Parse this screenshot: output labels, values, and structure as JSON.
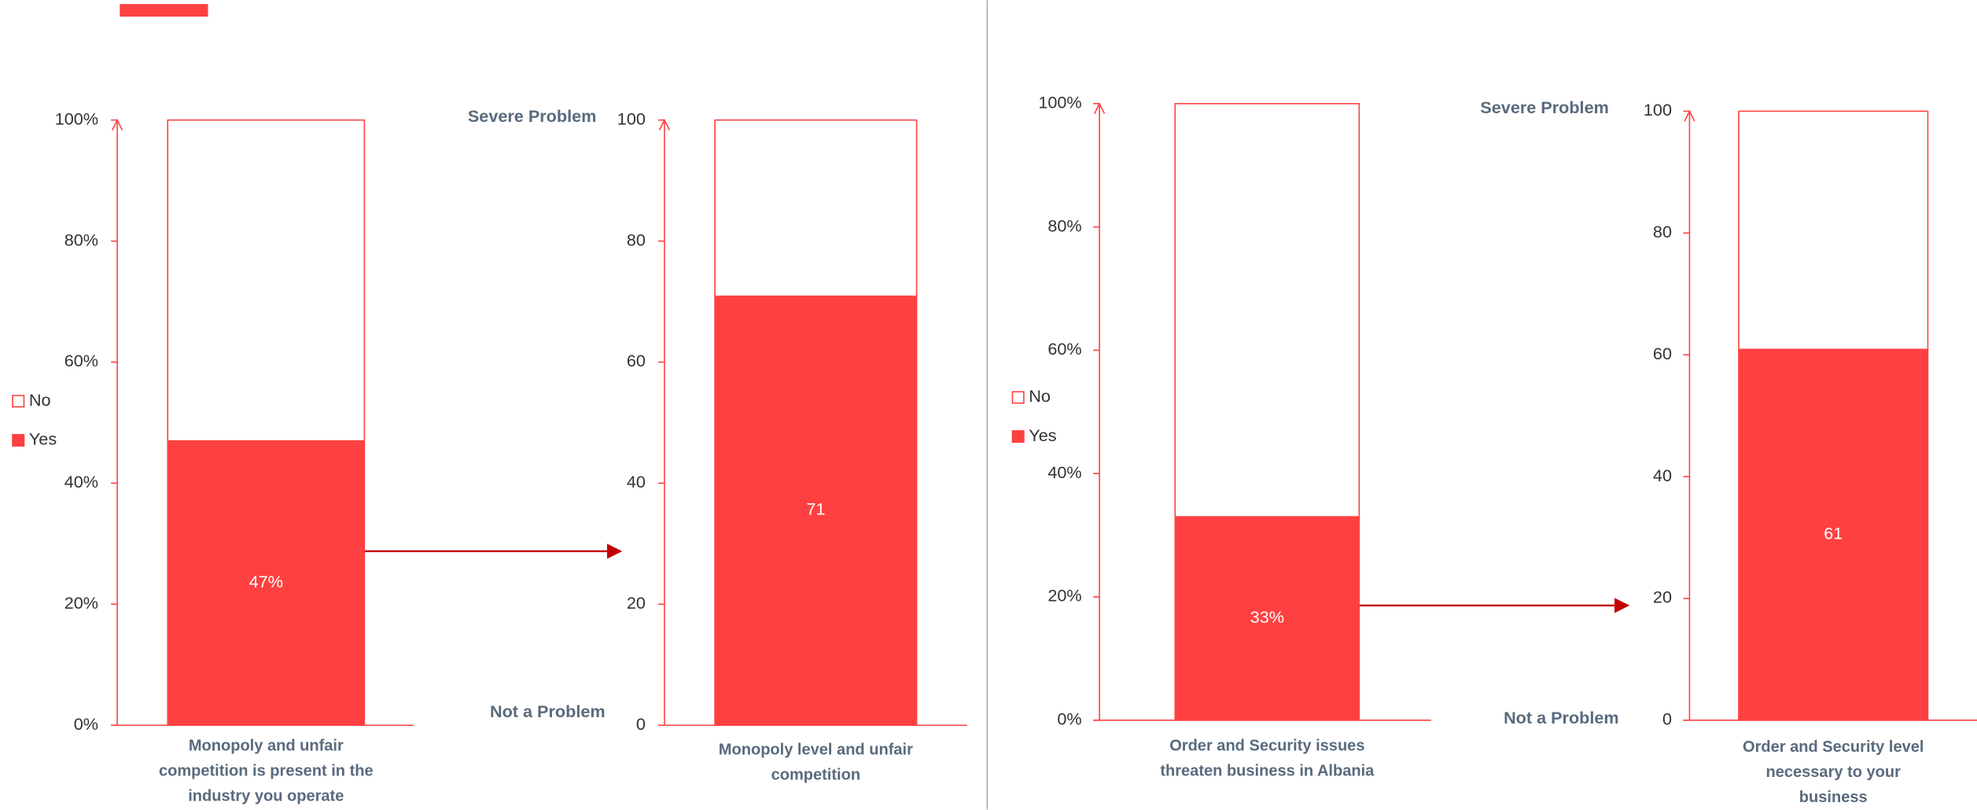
{
  "chart_data": [
    {
      "type": "stacked_bar",
      "categories": [
        "Monopoly and unfair competition is present in the industry you operate"
      ],
      "series": [
        {
          "name": "Yes",
          "color": "#ff4040",
          "values": [
            47
          ],
          "value_labels": [
            "47%"
          ]
        },
        {
          "name": "No",
          "color": "#ffffff",
          "values": [
            53
          ]
        }
      ],
      "ylim": [
        0,
        100
      ],
      "yticks": [
        {
          "value": 0,
          "label": "0%"
        },
        {
          "value": 20,
          "label": "20%"
        },
        {
          "value": 40,
          "label": "40%"
        },
        {
          "value": 60,
          "label": "60%"
        },
        {
          "value": 80,
          "label": "80%"
        },
        {
          "value": 100,
          "label": "100%"
        }
      ],
      "legend": "left"
    },
    {
      "type": "bar",
      "categories": [
        "Monopoly level and unfair competition"
      ],
      "values": [
        71
      ],
      "color": "#ff4040",
      "ylim": [
        0,
        100
      ],
      "yticks": [
        0,
        20,
        40,
        60,
        80,
        100
      ],
      "top_annotation": "Severe Problem",
      "bottom_annotation": "Not a Problem"
    },
    {
      "type": "stacked_bar",
      "categories": [
        "Order and Security issues threaten business in Albania"
      ],
      "series": [
        {
          "name": "Yes",
          "color": "#ff4040",
          "values": [
            33
          ],
          "value_labels": [
            "33%"
          ]
        },
        {
          "name": "No",
          "color": "#ffffff",
          "values": [
            67
          ]
        }
      ],
      "ylim": [
        0,
        100
      ],
      "yticks": [
        {
          "value": 0,
          "label": "0%"
        },
        {
          "value": 20,
          "label": "20%"
        },
        {
          "value": 40,
          "label": "40%"
        },
        {
          "value": 60,
          "label": "60%"
        },
        {
          "value": 80,
          "label": "80%"
        },
        {
          "value": 100,
          "label": "100%"
        }
      ],
      "legend": "left"
    },
    {
      "type": "bar",
      "categories": [
        "Order and Security level necessary to your business"
      ],
      "values": [
        61
      ],
      "color": "#ff4040",
      "ylim": [
        0,
        100
      ],
      "yticks": [
        0,
        20,
        40,
        60,
        80,
        100
      ],
      "top_annotation": "Severe Problem",
      "bottom_annotation": "Not a Problem"
    }
  ]
}
